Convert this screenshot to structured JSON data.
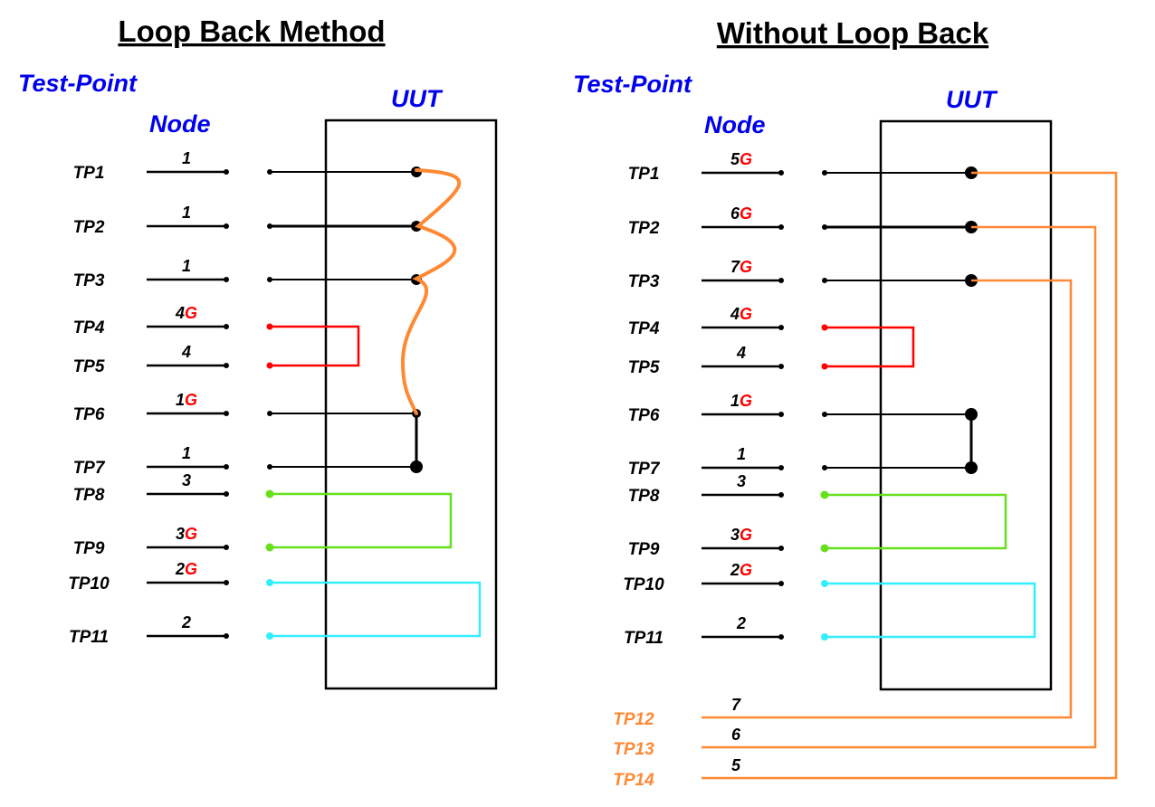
{
  "colors": {
    "heading": "#0000ee",
    "wire": "#000000",
    "ground": "#ff0000",
    "red_link": "#ff0000",
    "green_link": "#66e01a",
    "cyan_link": "#33eeff",
    "orange_link": "#ff8833"
  },
  "left": {
    "title": "Loop Back Method",
    "test_point_label": "Test-Point",
    "node_label": "Node",
    "uut_label": "UUT",
    "rows": [
      {
        "tp": "TP1",
        "node": "1",
        "g": ""
      },
      {
        "tp": "TP2",
        "node": "1",
        "g": ""
      },
      {
        "tp": "TP3",
        "node": "1",
        "g": ""
      },
      {
        "tp": "TP4",
        "node": "4",
        "g": "G"
      },
      {
        "tp": "TP5",
        "node": "4",
        "g": ""
      },
      {
        "tp": "TP6",
        "node": "1",
        "g": "G"
      },
      {
        "tp": "TP7",
        "node": "1",
        "g": ""
      },
      {
        "tp": "TP8",
        "node": "3",
        "g": ""
      },
      {
        "tp": "TP9",
        "node": "3",
        "g": "G"
      },
      {
        "tp": "TP10",
        "node": "2",
        "g": "G"
      },
      {
        "tp": "TP11",
        "node": "2",
        "g": ""
      }
    ]
  },
  "right": {
    "title": "Without Loop Back",
    "test_point_label": "Test-Point",
    "node_label": "Node",
    "uut_label": "UUT",
    "rows": [
      {
        "tp": "TP1",
        "node": "5",
        "g": "G"
      },
      {
        "tp": "TP2",
        "node": "6",
        "g": "G"
      },
      {
        "tp": "TP3",
        "node": "7",
        "g": "G"
      },
      {
        "tp": "TP4",
        "node": "4",
        "g": "G"
      },
      {
        "tp": "TP5",
        "node": "4",
        "g": ""
      },
      {
        "tp": "TP6",
        "node": "1",
        "g": "G"
      },
      {
        "tp": "TP7",
        "node": "1",
        "g": ""
      },
      {
        "tp": "TP8",
        "node": "3",
        "g": ""
      },
      {
        "tp": "TP9",
        "node": "3",
        "g": "G"
      },
      {
        "tp": "TP10",
        "node": "2",
        "g": "G"
      },
      {
        "tp": "TP11",
        "node": "2",
        "g": ""
      }
    ],
    "extra_rows": [
      {
        "tp": "TP12",
        "node": "7"
      },
      {
        "tp": "TP13",
        "node": "6"
      },
      {
        "tp": "TP14",
        "node": "5"
      }
    ]
  }
}
